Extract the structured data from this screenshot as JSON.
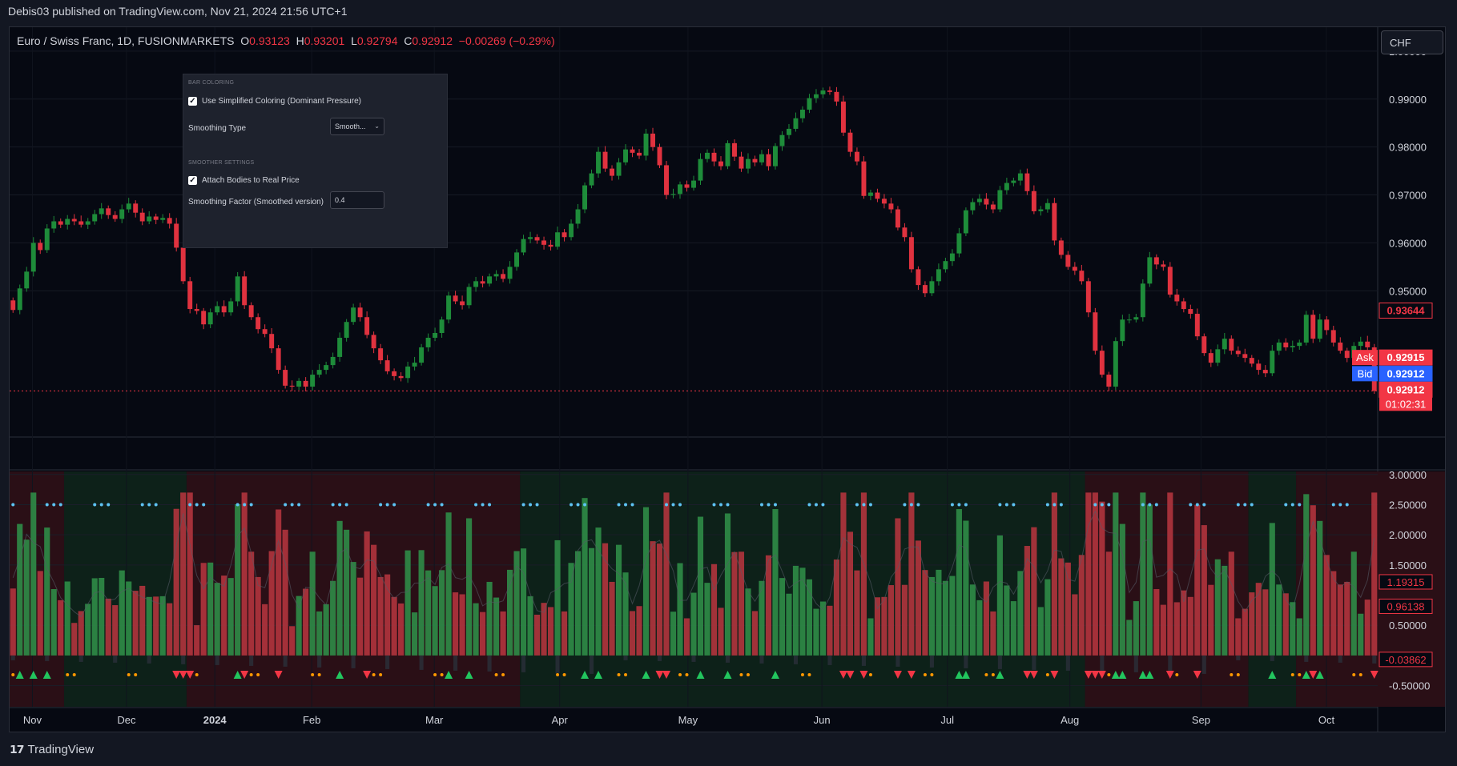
{
  "header": {
    "published": "Debis03 published on TradingView.com, Nov 21, 2024 21:56 UTC+1"
  },
  "legend": {
    "symbol": "Euro / Swiss Franc, 1D, FUSIONMARKETS",
    "o_label": "O",
    "o_value": "0.93123",
    "h_label": "H",
    "h_value": "0.93201",
    "l_label": "L",
    "l_value": "0.92794",
    "c_label": "C",
    "c_value": "0.92912",
    "change": "−0.00269 (−0.29%)"
  },
  "currency_button": "CHF",
  "settings_panel": {
    "section_bar_coloring": "BAR COLORING",
    "simplified_label": "Use Simplified Coloring (Dominant Pressure)",
    "smoothing_type_label": "Smoothing Type",
    "smoothing_type_value": "Smooth...",
    "section_smoother": "SMOOTHER SETTINGS",
    "attach_label": "Attach Bodies to Real Price",
    "factor_label": "Smoothing Factor (Smoothed version)",
    "factor_value": "0.4"
  },
  "footer": {
    "brand": "TradingView"
  },
  "colors": {
    "up": "#1e8c3a",
    "down": "#e0323f",
    "background": "#060912",
    "grid": "#161a25",
    "axis_text": "#d1d4dc",
    "ask": "#f23645",
    "bid": "#2962ff",
    "dot_blue": "#5ec4f4",
    "dot_orange": "#ff9800"
  },
  "chart_data": [
    {
      "type": "candlestick",
      "symbol": "Euro / Swiss Franc",
      "interval": "1D",
      "y_axis_ticks": [
        "1.00000",
        "0.99000",
        "0.98000",
        "0.97000",
        "0.96000",
        "0.95000"
      ],
      "ylim": [
        0.926,
        1.005
      ],
      "x_axis_ticks": [
        "Nov",
        "Dec",
        "2024",
        "Feb",
        "Mar",
        "Apr",
        "May",
        "Jun",
        "Jul",
        "Aug",
        "Sep",
        "Oct"
      ],
      "price_labels": [
        {
          "text": "0.93644",
          "value": 0.93644
        },
        {
          "label": "Ask",
          "text": "0.92915",
          "value": 0.92915
        },
        {
          "label": "Bid",
          "text": "0.92912",
          "value": 0.92912
        },
        {
          "text": "0.92912",
          "value": 0.92912,
          "countdown": "01:02:31"
        }
      ],
      "closes": [
        0.946,
        0.9505,
        0.954,
        0.96,
        0.9585,
        0.963,
        0.9645,
        0.9638,
        0.965,
        0.9645,
        0.9638,
        0.9645,
        0.966,
        0.9672,
        0.9658,
        0.965,
        0.967,
        0.9682,
        0.9663,
        0.9645,
        0.9655,
        0.9648,
        0.9652,
        0.964,
        0.959,
        0.952,
        0.9462,
        0.9458,
        0.943,
        0.9455,
        0.9468,
        0.9455,
        0.9478,
        0.953,
        0.947,
        0.9445,
        0.942,
        0.941,
        0.938,
        0.9335,
        0.9302,
        0.93,
        0.9312,
        0.93,
        0.9325,
        0.9335,
        0.9345,
        0.9362,
        0.9402,
        0.9435,
        0.9465,
        0.9445,
        0.9408,
        0.938,
        0.9355,
        0.9332,
        0.9322,
        0.9318,
        0.9342,
        0.935,
        0.9382,
        0.9402,
        0.9412,
        0.944,
        0.949,
        0.9478,
        0.947,
        0.9508,
        0.952,
        0.9515,
        0.953,
        0.9535,
        0.9525,
        0.955,
        0.958,
        0.9608,
        0.9612,
        0.9605,
        0.9596,
        0.9592,
        0.9622,
        0.9612,
        0.964,
        0.967,
        0.972,
        0.9745,
        0.979,
        0.9755,
        0.974,
        0.9768,
        0.9795,
        0.9788,
        0.9782,
        0.9828,
        0.98,
        0.9762,
        0.97,
        0.9702,
        0.9722,
        0.9715,
        0.973,
        0.9775,
        0.9788,
        0.977,
        0.976,
        0.9808,
        0.978,
        0.9755,
        0.9775,
        0.9768,
        0.9785,
        0.976,
        0.9802,
        0.9825,
        0.9838,
        0.986,
        0.9878,
        0.9902,
        0.991,
        0.9918,
        0.9915,
        0.9895,
        0.983,
        0.979,
        0.977,
        0.9698,
        0.9705,
        0.9692,
        0.9682,
        0.967,
        0.9632,
        0.9612,
        0.9545,
        0.9512,
        0.9495,
        0.952,
        0.9545,
        0.9562,
        0.9578,
        0.962,
        0.9668,
        0.9685,
        0.9692,
        0.968,
        0.967,
        0.971,
        0.9725,
        0.973,
        0.9745,
        0.9708,
        0.9666,
        0.967,
        0.9683,
        0.9605,
        0.9575,
        0.955,
        0.9542,
        0.952,
        0.9455,
        0.9375,
        0.9325,
        0.93,
        0.9395,
        0.944,
        0.944,
        0.9445,
        0.9515,
        0.957,
        0.9555,
        0.955,
        0.9492,
        0.9478,
        0.9462,
        0.9452,
        0.9405,
        0.937,
        0.935,
        0.9378,
        0.94,
        0.9375,
        0.9368,
        0.936,
        0.9348,
        0.9335,
        0.9328,
        0.9375,
        0.9392,
        0.9382,
        0.9385,
        0.9392,
        0.945,
        0.94,
        0.944,
        0.9418,
        0.9392,
        0.9375,
        0.936,
        0.9385,
        0.9394,
        0.9382,
        0.9291
      ]
    },
    {
      "type": "bar",
      "name": "pressure histogram",
      "y_axis_ticks": [
        "3.00000",
        "2.50000",
        "2.00000",
        "1.50000",
        "0.50000",
        "-0.50000"
      ],
      "ylim": [
        -0.85,
        3.05
      ],
      "value_labels": [
        {
          "text": "1.19315",
          "value": 1.19315
        },
        {
          "text": "0.96138",
          "value": 0.96138
        },
        {
          "text": "-0.03862",
          "value": -0.03862
        }
      ],
      "regimes": [
        {
          "from": 0,
          "to": 8,
          "state": "bearish"
        },
        {
          "from": 8,
          "to": 26,
          "state": "bullish"
        },
        {
          "from": 26,
          "to": 75,
          "state": "bearish"
        },
        {
          "from": 75,
          "to": 158,
          "state": "bullish"
        },
        {
          "from": 158,
          "to": 182,
          "state": "bearish"
        },
        {
          "from": 182,
          "to": 189,
          "state": "bullish"
        },
        {
          "from": 189,
          "to": 246,
          "state": "bearish"
        }
      ]
    }
  ]
}
